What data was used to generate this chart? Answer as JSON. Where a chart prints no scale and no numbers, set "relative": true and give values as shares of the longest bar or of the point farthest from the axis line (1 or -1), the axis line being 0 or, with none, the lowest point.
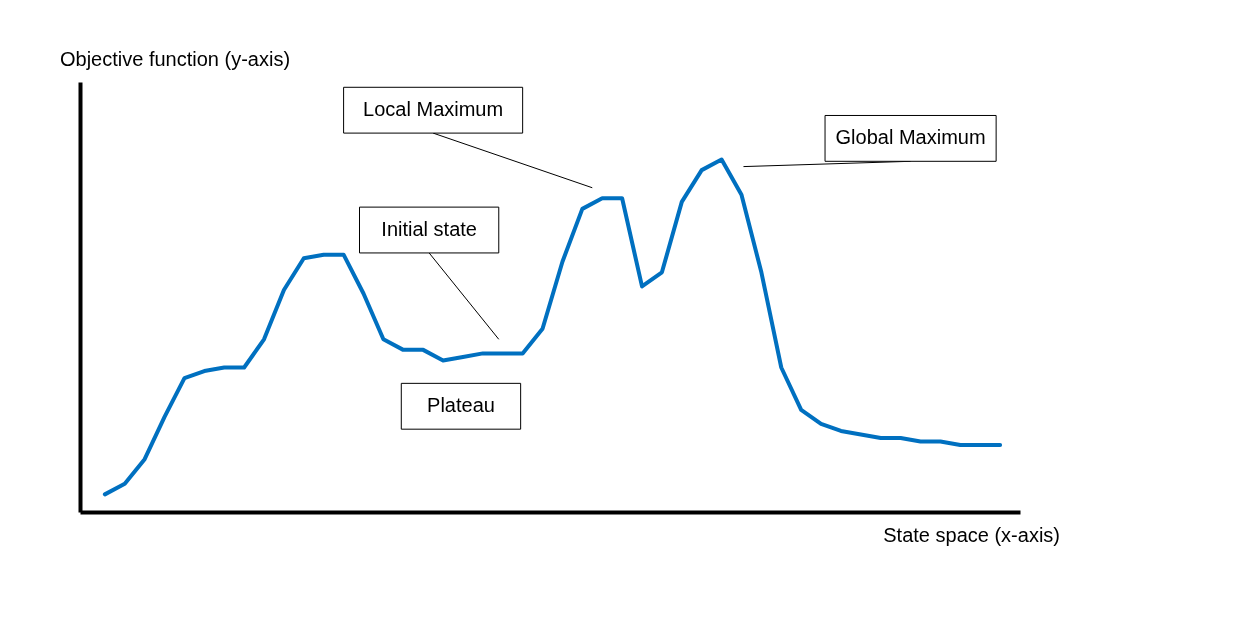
{
  "chart_data": {
    "type": "line",
    "relative": true,
    "xlabel": "State space (x-axis)",
    "ylabel": "Objective function (y-axis)",
    "categories": [
      null,
      null,
      null,
      null,
      null,
      null,
      null,
      null,
      null,
      null,
      null,
      null,
      null,
      null,
      null,
      null,
      null,
      null,
      null,
      null,
      null,
      null,
      null,
      null,
      null,
      null,
      null,
      null,
      null,
      null,
      null,
      null,
      null,
      null,
      null,
      null,
      null,
      null,
      null,
      null,
      null,
      null,
      null,
      null,
      null,
      null
    ],
    "series": [
      {
        "color": "#0070c0",
        "values": [
          0.05,
          0.08,
          0.15,
          0.27,
          0.38,
          0.4,
          0.41,
          0.41,
          0.49,
          0.63,
          0.72,
          0.73,
          0.73,
          0.62,
          0.49,
          0.46,
          0.46,
          0.43,
          0.44,
          0.45,
          0.45,
          0.45,
          0.52,
          0.71,
          0.86,
          0.89,
          0.89,
          0.64,
          0.68,
          0.88,
          0.97,
          1.0,
          0.9,
          0.68,
          0.41,
          0.29,
          0.25,
          0.23,
          0.22,
          0.21,
          0.21,
          0.2,
          0.2,
          0.19,
          0.19,
          0.19
        ]
      }
    ],
    "legend": false,
    "annotations": [
      "Local Maximum",
      "Global Maximum",
      "Initial state",
      "Plateau"
    ],
    "grid": false
  }
}
